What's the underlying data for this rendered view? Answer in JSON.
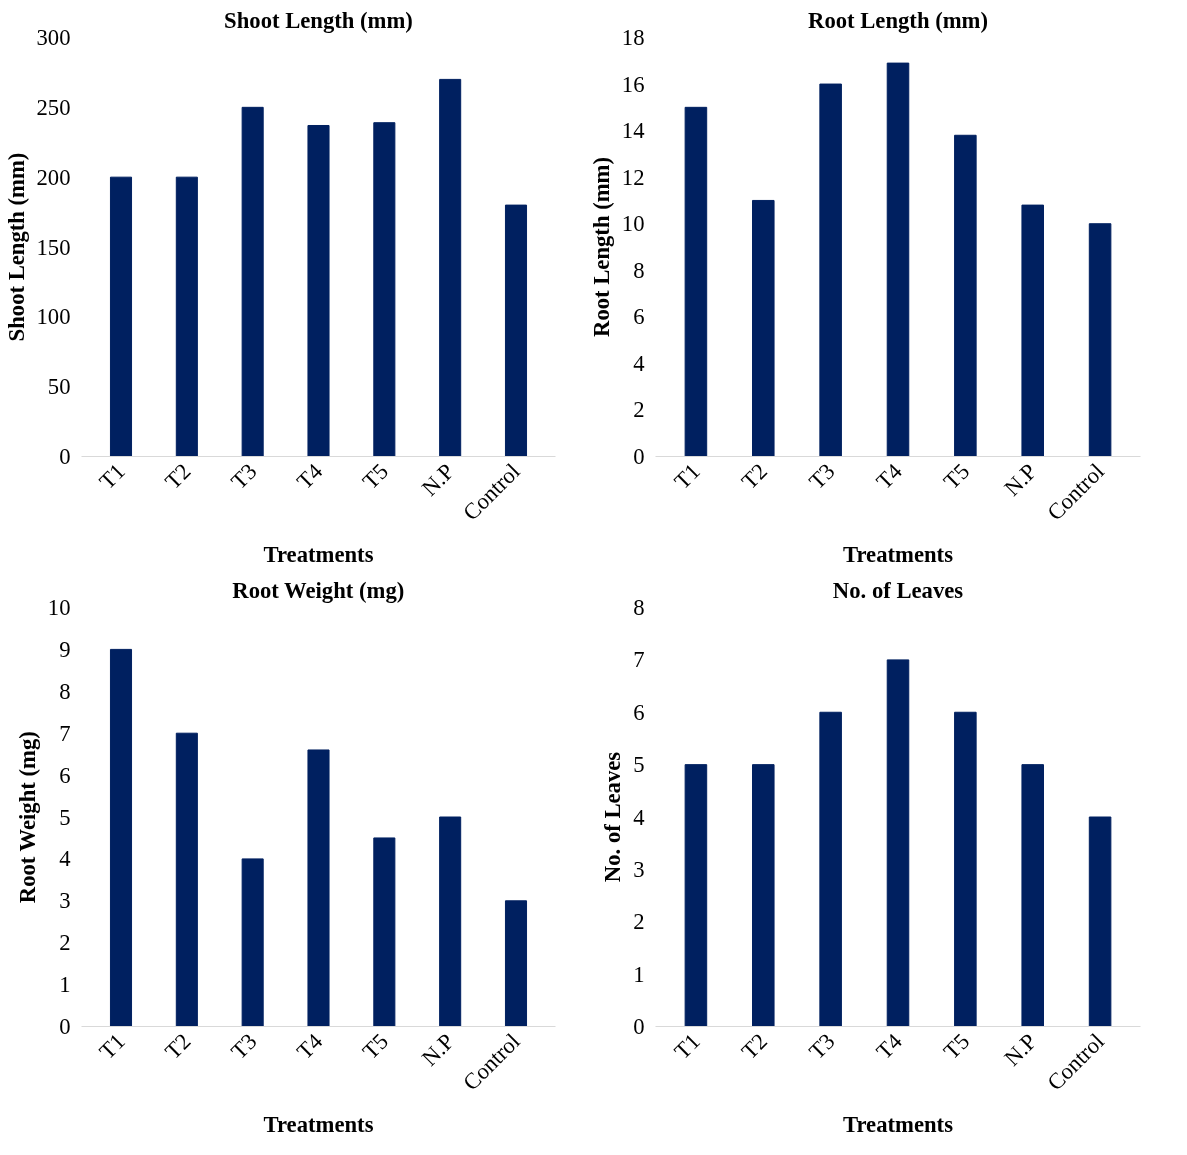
{
  "chart_data": [
    {
      "type": "bar",
      "title": "Shoot Length (mm)",
      "xlabel": "Treatments",
      "ylabel": "Shoot Length (mm)",
      "categories": [
        "T1",
        "T2",
        "T3",
        "T4",
        "T5",
        "N.P",
        "Control"
      ],
      "values": [
        200,
        200,
        250,
        237,
        239,
        270,
        180
      ],
      "color": "#002060",
      "ylim": [
        0,
        300
      ],
      "yticks": [
        0,
        50,
        100,
        150,
        200,
        250,
        300
      ]
    },
    {
      "type": "bar",
      "title": "Root Length (mm)",
      "xlabel": "Treatments",
      "ylabel": "Root Length (mm)",
      "categories": [
        "T1",
        "T2",
        "T3",
        "T4",
        "T5",
        "N.P",
        "Control"
      ],
      "values": [
        15,
        11,
        16,
        16.9,
        13.8,
        10.8,
        10
      ],
      "color": "#002060",
      "ylim": [
        0,
        18
      ],
      "yticks": [
        0,
        2,
        4,
        6,
        8,
        10,
        12,
        14,
        16,
        18
      ]
    },
    {
      "type": "bar",
      "title": "Root Weight (mg)",
      "xlabel": "Treatments",
      "ylabel": "Root Weight (mg)",
      "categories": [
        "T1",
        "T2",
        "T3",
        "T4",
        "T5",
        "N.P",
        "Control"
      ],
      "values": [
        9,
        7,
        4,
        6.6,
        4.5,
        5,
        3
      ],
      "color": "#002060",
      "ylim": [
        0,
        10
      ],
      "yticks": [
        0,
        1,
        2,
        3,
        4,
        5,
        6,
        7,
        8,
        9,
        10
      ]
    },
    {
      "type": "bar",
      "title": "No. of Leaves",
      "xlabel": "Treatments",
      "ylabel": "No. of Leaves",
      "categories": [
        "T1",
        "T2",
        "T3",
        "T4",
        "T5",
        "N.P",
        "Control"
      ],
      "values": [
        5,
        5,
        6,
        7,
        6,
        5,
        4
      ],
      "color": "#002060",
      "ylim": [
        0,
        8
      ],
      "yticks": [
        0,
        1,
        2,
        3,
        4,
        5,
        6,
        7,
        8
      ]
    }
  ]
}
